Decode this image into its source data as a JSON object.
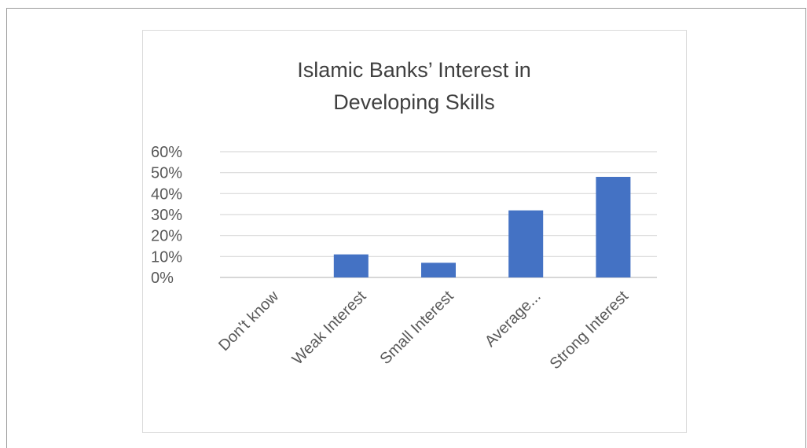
{
  "chart_data": {
    "type": "bar",
    "title_lines": [
      "Islamic Banks’ Interest in",
      "Developing Skills"
    ],
    "categories": [
      "Don't know",
      "Weak Interest",
      "Small Interest",
      "Average...",
      "Strong Interest"
    ],
    "values": [
      0,
      0.11,
      0.07,
      0.32,
      0.48
    ],
    "ylim": [
      0,
      0.6
    ],
    "yticks": [
      0,
      0.1,
      0.2,
      0.3,
      0.4,
      0.5,
      0.6
    ],
    "ytick_labels": [
      "0%",
      "10%",
      "20%",
      "30%",
      "40%",
      "50%",
      "60%"
    ],
    "bar_color": "#4472c4",
    "grid": true,
    "legend": "none",
    "xlabel": "",
    "ylabel": ""
  }
}
